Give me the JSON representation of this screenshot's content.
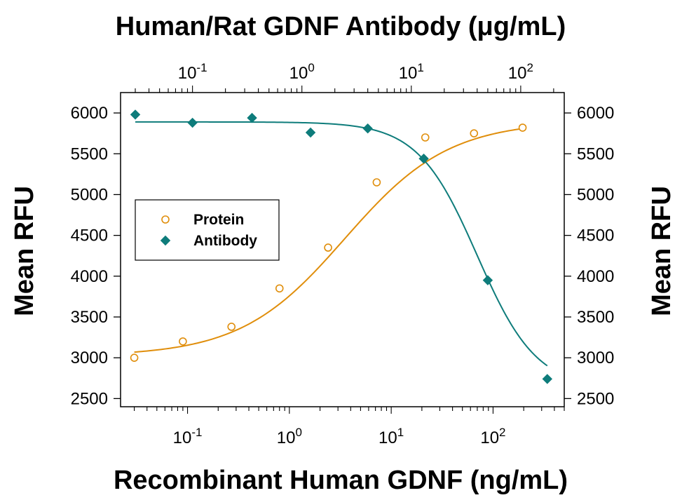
{
  "chart_data": {
    "type": "scatter",
    "title": "Human/Rat GDNF Antibody (μg/mL)",
    "xlabel": "Recombinant Human GDNF (ng/mL)",
    "ylabel": "Mean RFU",
    "ylabel_right": "Mean RFU",
    "x_scale": "log",
    "xlim": [
      0.022,
      500
    ],
    "top_xlim": [
      0.022,
      250
    ],
    "ylim": [
      2400,
      6250
    ],
    "y_ticks": [
      2500,
      3000,
      3500,
      4000,
      4500,
      5000,
      5500,
      6000
    ],
    "y_tick_labels": [
      "2500",
      "3000",
      "3500",
      "4000",
      "4500",
      "5000",
      "5500",
      "6000"
    ],
    "x_ticks": [
      {
        "value": 0.1,
        "base": "10",
        "exp": "-1"
      },
      {
        "value": 1,
        "base": "10",
        "exp": "0"
      },
      {
        "value": 10,
        "base": "10",
        "exp": "1"
      },
      {
        "value": 100,
        "base": "10",
        "exp": "2"
      }
    ],
    "top_x_ticks": [
      {
        "value": 0.1,
        "base": "10",
        "exp": "-1"
      },
      {
        "value": 1,
        "base": "10",
        "exp": "0"
      },
      {
        "value": 10,
        "base": "10",
        "exp": "1"
      },
      {
        "value": 100,
        "base": "10",
        "exp": "2"
      }
    ],
    "legend_position": "center-left",
    "series": [
      {
        "name": "Protein",
        "axis": "bottom",
        "marker": "open-circle",
        "color": "#E08E0B",
        "x": [
          0.03,
          0.09,
          0.27,
          0.8,
          2.4,
          7.2,
          21.6,
          65,
          195
        ],
        "y": [
          3000,
          3200,
          3380,
          3850,
          4350,
          5150,
          5700,
          5750,
          5820
        ],
        "fit": {
          "bottom": 3020,
          "top": 5900,
          "ec50": 3.5,
          "hill": 0.85
        }
      },
      {
        "name": "Antibody",
        "axis": "top",
        "marker": "filled-diamond",
        "color": "#0E7C7B",
        "x": [
          0.03,
          0.1,
          0.35,
          1.2,
          4,
          13,
          50,
          175
        ],
        "y": [
          5980,
          5880,
          5940,
          5760,
          5810,
          5440,
          3950,
          2740
        ],
        "fit": {
          "bottom": 2620,
          "top": 5890,
          "ec50": 40,
          "hill": 1.6
        }
      }
    ]
  }
}
